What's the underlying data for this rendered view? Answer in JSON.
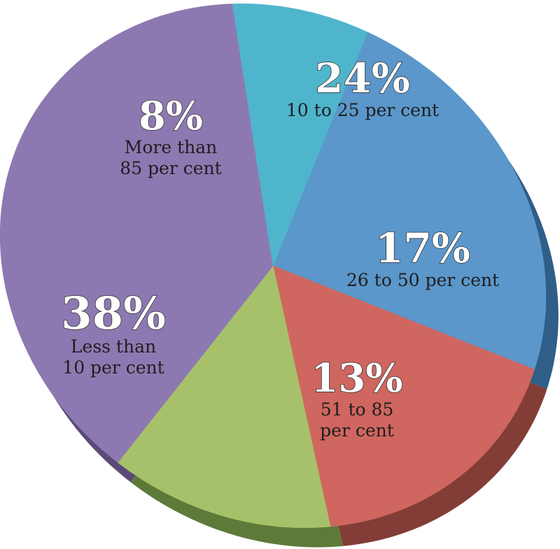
{
  "chart_data": {
    "type": "pie",
    "title": "",
    "slices": [
      {
        "value": 24,
        "value_label": "24%",
        "label_lines": [
          "10 to 25 per cent"
        ],
        "color": "#5b97ca",
        "side_color": "#2f5e88"
      },
      {
        "value": 17,
        "value_label": "17%",
        "label_lines": [
          "26 to 50 per cent"
        ],
        "color": "#cf6660",
        "side_color": "#833d37"
      },
      {
        "value": 13,
        "value_label": "13%",
        "label_lines": [
          "51 to 85",
          "per cent"
        ],
        "color": "#a7c16a",
        "side_color": "#5e7a39"
      },
      {
        "value": 38,
        "value_label": "38%",
        "label_lines": [
          "Less than",
          "10 per cent"
        ],
        "color": "#8d79b1",
        "side_color": "#594a78"
      },
      {
        "value": 8,
        "value_label": "8%",
        "label_lines": [
          "More than",
          "85 per cent"
        ],
        "color": "#4fb5cd",
        "side_color": "#2d7a8c"
      }
    ],
    "style": "3d-tilted"
  }
}
